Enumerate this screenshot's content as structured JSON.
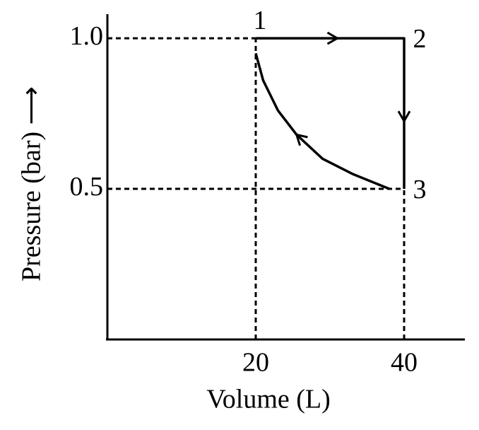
{
  "chart_data": {
    "type": "line",
    "xlabel": "Volume (L)",
    "ylabel": "Pressure (bar) ⟶",
    "xlim": [
      0,
      48
    ],
    "ylim": [
      0,
      1.08
    ],
    "xticks": [
      20,
      40
    ],
    "yticks": [
      0.5,
      {
        "value": 1,
        "label": "1.0"
      }
    ],
    "series": [
      {
        "x": [
          20,
          40,
          40
        ],
        "values": [
          1,
          1,
          0.5
        ],
        "color": "#000000"
      },
      {
        "x": [
          38,
          33,
          29,
          25.5,
          23,
          21,
          20
        ],
        "values": [
          0.5,
          0.55,
          0.6,
          0.68,
          0.76,
          0.86,
          0.95
        ],
        "color": "#000000"
      }
    ],
    "point_labels": [
      {
        "text": "1",
        "x": 20,
        "y": 1
      },
      {
        "text": "2",
        "x": 40,
        "y": 1
      },
      {
        "text": "3",
        "x": 40,
        "y": 0.5
      }
    ]
  }
}
